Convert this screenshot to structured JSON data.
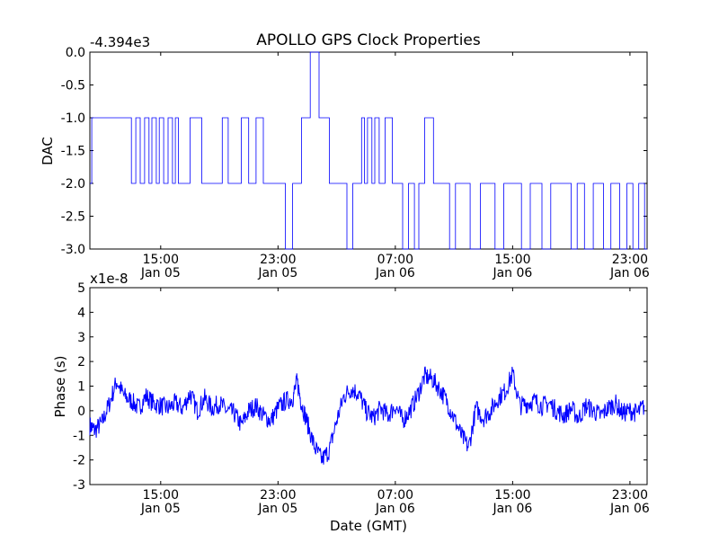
{
  "figure": {
    "title": "APOLLO GPS Clock Properties",
    "xlabel": "Date (GMT)"
  },
  "chart_data": [
    {
      "type": "line",
      "title": "APOLLO GPS Clock Properties",
      "ylabel": "DAC",
      "offset_label": "-4.394e3",
      "ylim": [
        -3.0,
        0.0
      ],
      "yticks": [
        "0.0",
        "-0.5",
        "-1.0",
        "-1.5",
        "-2.0",
        "-2.5",
        "-3.0"
      ],
      "xlim": [
        "Jan 05 10:10",
        "Jan 07 00:10"
      ],
      "xticks": [
        {
          "time": "15:00",
          "date": "Jan 05"
        },
        {
          "time": "23:00",
          "date": "Jan 05"
        },
        {
          "time": "07:00",
          "date": "Jan 06"
        },
        {
          "time": "15:00",
          "date": "Jan 06"
        },
        {
          "time": "23:00",
          "date": "Jan 06"
        }
      ],
      "color": "#0000ff",
      "linewidth": "thin",
      "series": [
        {
          "x_hours_since_Jan05_00:00": [
            10.17,
            10.3,
            11.0,
            13.0,
            13.3,
            13.6,
            13.9,
            14.2,
            14.4,
            14.7,
            14.9,
            15.2,
            15.5,
            15.8,
            16.0,
            16.2,
            16.6,
            17.0,
            17.8,
            18.4,
            19.2,
            19.6,
            20.5,
            21.0,
            21.5,
            22.0,
            22.6,
            23.0,
            23.5,
            24.0,
            24.6,
            25.0,
            25.2,
            25.8,
            26.1,
            26.5,
            27.0,
            27.4,
            27.7,
            28.1,
            28.4,
            28.7,
            28.9,
            29.1,
            29.4,
            29.6,
            29.9,
            30.3,
            30.8,
            31.2,
            31.5,
            31.9,
            32.3,
            32.6,
            33.0,
            33.6,
            34.2,
            34.7,
            35.1,
            35.5,
            36.1,
            36.8,
            37.2,
            37.8,
            38.4,
            39.1,
            39.6,
            40.2,
            41.0,
            41.6,
            42.3,
            43.0,
            43.4,
            43.9,
            44.5,
            45.2,
            45.7,
            46.3,
            46.8,
            47.2,
            47.6,
            48.0
          ],
          "values": [
            -2.0,
            -1.0,
            -1.0,
            -2.0,
            -1.0,
            -2.0,
            -1.0,
            -2.0,
            -1.0,
            -2.0,
            -1.0,
            -2.0,
            -1.0,
            -2.0,
            -1.0,
            -2.0,
            -2.0,
            -1.0,
            -2.0,
            -2.0,
            -1.0,
            -2.0,
            -1.0,
            -2.0,
            -1.0,
            -2.0,
            -2.0,
            -2.0,
            -3.0,
            -2.0,
            -1.0,
            -1.0,
            0.0,
            -1.0,
            -1.0,
            -2.0,
            -2.0,
            -2.0,
            -3.0,
            -2.0,
            -2.0,
            -1.0,
            -2.0,
            -1.0,
            -2.0,
            -1.0,
            -2.0,
            -1.0,
            -2.0,
            -2.0,
            -3.0,
            -2.0,
            -3.0,
            -2.0,
            -1.0,
            -2.0,
            -2.0,
            -3.0,
            -2.0,
            -2.0,
            -3.0,
            -2.0,
            -2.0,
            -3.0,
            -2.0,
            -2.0,
            -3.0,
            -2.0,
            -3.0,
            -2.0,
            -2.0,
            -3.0,
            -2.0,
            -3.0,
            -2.0,
            -3.0,
            -2.0,
            -3.0,
            -2.0,
            -3.0,
            -2.0,
            -3.0
          ]
        }
      ]
    },
    {
      "type": "line",
      "ylabel": "Phase (s)",
      "offset_label": "x1e-8",
      "ylim": [
        -3,
        5
      ],
      "yticks": [
        "5",
        "4",
        "3",
        "2",
        "1",
        "0",
        "-1",
        "-2",
        "-3"
      ],
      "xlim": [
        "Jan 05 10:10",
        "Jan 07 00:10"
      ],
      "xticks": [
        {
          "time": "15:00",
          "date": "Jan 05"
        },
        {
          "time": "23:00",
          "date": "Jan 05"
        },
        {
          "time": "07:00",
          "date": "Jan 06"
        },
        {
          "time": "15:00",
          "date": "Jan 06"
        },
        {
          "time": "23:00",
          "date": "Jan 06"
        }
      ],
      "color": "#0000ff",
      "series": [
        {
          "x_hours_since_Jan05_00:00": [
            10.17,
            10.5,
            11.0,
            11.5,
            12.0,
            12.5,
            13.0,
            13.5,
            14.0,
            14.5,
            15.0,
            15.5,
            16.0,
            16.5,
            17.0,
            17.5,
            18.0,
            18.5,
            19.0,
            19.5,
            20.0,
            20.5,
            21.0,
            21.5,
            22.0,
            22.5,
            23.0,
            23.5,
            24.0,
            24.3,
            24.6,
            25.0,
            25.5,
            26.0,
            26.5,
            27.0,
            27.5,
            28.0,
            28.5,
            29.0,
            29.5,
            30.0,
            30.5,
            31.0,
            31.5,
            32.0,
            32.5,
            33.0,
            33.5,
            34.0,
            34.5,
            35.0,
            35.5,
            36.0,
            36.5,
            37.0,
            37.5,
            38.0,
            38.5,
            39.0,
            39.5,
            40.0,
            40.5,
            41.0,
            41.5,
            42.0,
            42.5,
            43.0,
            43.5,
            44.0,
            44.5,
            45.0,
            45.5,
            46.0,
            46.5,
            47.0,
            47.5,
            48.0
          ],
          "values": [
            -0.6,
            -0.8,
            -0.5,
            0.3,
            1.2,
            0.6,
            0.4,
            0.1,
            0.6,
            0.3,
            0.2,
            0.1,
            0.3,
            0.1,
            0.7,
            0.0,
            0.5,
            0.1,
            0.3,
            0.0,
            -0.1,
            -0.6,
            0.0,
            0.2,
            -0.2,
            -0.4,
            0.1,
            0.4,
            0.5,
            1.2,
            0.3,
            -0.5,
            -1.5,
            -2.0,
            -1.6,
            -0.4,
            0.6,
            0.9,
            0.7,
            0.0,
            -0.3,
            0.1,
            -0.2,
            0.2,
            -0.4,
            0.0,
            0.6,
            1.4,
            1.3,
            0.9,
            0.4,
            -0.3,
            -1.0,
            -1.5,
            0.1,
            -0.3,
            0.0,
            0.5,
            0.8,
            1.5,
            0.2,
            0.3,
            0.4,
            0.2,
            0.3,
            0.0,
            -0.2,
            0.1,
            -0.3,
            0.2,
            0.0,
            -0.2,
            0.1,
            0.3,
            -0.1,
            0.0,
            -0.1,
            0.2
          ]
        }
      ]
    }
  ]
}
